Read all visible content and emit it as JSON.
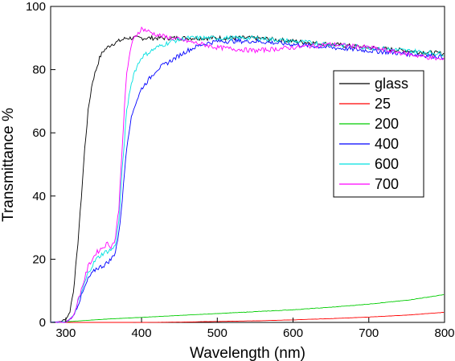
{
  "chart_data": {
    "type": "line",
    "title": "",
    "xlabel": "Wavelength (nm)",
    "ylabel": "Transmittance %",
    "xlim": [
      280,
      800
    ],
    "ylim": [
      0,
      100
    ],
    "xticks": [
      300,
      400,
      500,
      600,
      700,
      800
    ],
    "xtick_labels": [
      "300",
      "400",
      "500",
      "600",
      "700",
      "800"
    ],
    "yticks": [
      0,
      20,
      40,
      60,
      80,
      100
    ],
    "ytick_labels": [
      "0",
      "20",
      "40",
      "60",
      "80",
      "100"
    ],
    "grid": false,
    "legend_position": "right",
    "series": [
      {
        "name": "glass",
        "color": "#000000",
        "x": [
          280,
          290,
          300,
          305,
          310,
          315,
          320,
          325,
          330,
          335,
          340,
          345,
          350,
          355,
          360,
          370,
          380,
          400,
          450,
          500,
          550,
          600,
          650,
          700,
          750,
          800
        ],
        "y": [
          0,
          0,
          1,
          3,
          10,
          22,
          38,
          55,
          68,
          76,
          80,
          84,
          86,
          87,
          88,
          89,
          90,
          90,
          90,
          90,
          90,
          89,
          88,
          87,
          86,
          85
        ]
      },
      {
        "name": "25",
        "color": "#ff0000",
        "x": [
          280,
          300,
          350,
          400,
          450,
          500,
          550,
          600,
          650,
          700,
          750,
          800
        ],
        "y": [
          0,
          0,
          0,
          0,
          0.1,
          0.3,
          0.5,
          0.8,
          1.2,
          1.7,
          2.3,
          3.2
        ]
      },
      {
        "name": "200",
        "color": "#00cc00",
        "x": [
          280,
          300,
          350,
          400,
          450,
          500,
          550,
          600,
          650,
          700,
          750,
          800
        ],
        "y": [
          0,
          0.2,
          1,
          1.6,
          2.2,
          2.8,
          3.4,
          4.0,
          4.8,
          5.8,
          7.0,
          8.8
        ]
      },
      {
        "name": "400",
        "color": "#0000ff",
        "x": [
          280,
          290,
          300,
          310,
          320,
          330,
          340,
          350,
          360,
          365,
          370,
          375,
          380,
          385,
          390,
          400,
          420,
          440,
          460,
          480,
          500,
          550,
          600,
          650,
          700,
          750,
          800
        ],
        "y": [
          0,
          0,
          0,
          2,
          8,
          14,
          17,
          18,
          20,
          22,
          28,
          40,
          55,
          63,
          68,
          74,
          80,
          83,
          86,
          88,
          89,
          89,
          88,
          87,
          86,
          85,
          84
        ]
      },
      {
        "name": "600",
        "color": "#00e0e0",
        "x": [
          280,
          290,
          300,
          310,
          320,
          330,
          340,
          350,
          360,
          365,
          370,
          375,
          380,
          385,
          390,
          400,
          420,
          440,
          460,
          480,
          500,
          550,
          600,
          650,
          700,
          750,
          800
        ],
        "y": [
          0,
          0,
          0,
          2,
          9,
          16,
          20,
          22,
          23,
          24,
          32,
          50,
          66,
          74,
          79,
          84,
          87,
          89,
          90,
          90,
          90,
          90,
          89,
          88,
          87,
          86,
          85
        ]
      },
      {
        "name": "700",
        "color": "#ff00ff",
        "x": [
          280,
          290,
          300,
          310,
          320,
          330,
          340,
          350,
          355,
          360,
          365,
          370,
          375,
          380,
          385,
          390,
          400,
          410,
          420,
          440,
          460,
          480,
          500,
          550,
          600,
          650,
          700,
          750,
          800
        ],
        "y": [
          0,
          0,
          0,
          2,
          10,
          18,
          22,
          24,
          25,
          24,
          26,
          36,
          58,
          78,
          86,
          90,
          93,
          92,
          91,
          90,
          89,
          88,
          87,
          86,
          87,
          88,
          87,
          85,
          83
        ]
      }
    ]
  }
}
